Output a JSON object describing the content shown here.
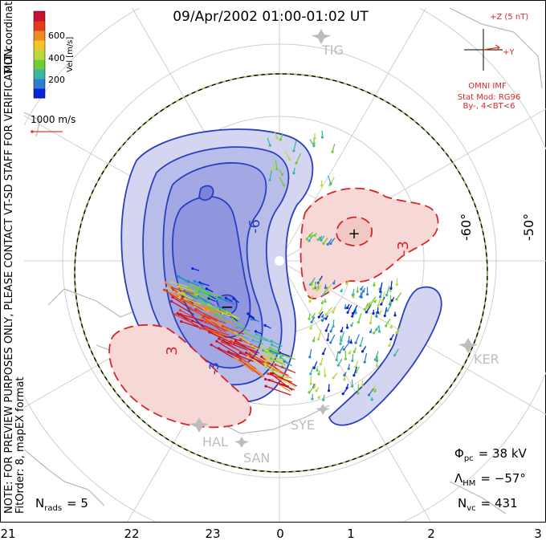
{
  "chart_data": {
    "type": "polar_convection_map",
    "title": "09/Apr/2002 01:00-01:02 UT",
    "coordinates": "MLT coordinates",
    "side_note": "NOTE: FOR PREVIEW PURPOSES ONLY, PLEASE CONTACT VT-SD STAFF FOR VERIFICATION.",
    "fit_note": "FitOrder: 8, mapEX format",
    "colorbar": {
      "label": "Vel [m/s]",
      "ticks": [
        "200",
        "400",
        "600"
      ],
      "colors": [
        "#0b22d6",
        "#2f7fd0",
        "#3cb6a2",
        "#6fcb3a",
        "#b9d93c",
        "#f2c52a",
        "#f08a22",
        "#e33b1c",
        "#c8102e"
      ]
    },
    "reference_vector": "1000 m/s",
    "imf": {
      "z_label": "+Z (5 nT)",
      "y_label": "+Y",
      "source": "OMNI IMF",
      "model": "Stat Mod: RG96",
      "condition": "By-, 4<BT<6"
    },
    "mlt_ticks": [
      "21",
      "22",
      "23",
      "0",
      "1",
      "2",
      "3"
    ],
    "lat_ticks": [
      "-60°",
      "-50°"
    ],
    "stations": [
      "TIG",
      "KER",
      "SYE",
      "HAL",
      "SAN"
    ],
    "contour_labels": [
      "-6",
      "-3",
      "3",
      "-3"
    ],
    "potential_markers": {
      "minimum": "−",
      "maximum": "+"
    },
    "stats": {
      "phi_pc_label": "Φ",
      "phi_pc_sub": "pc",
      "phi_pc_value": "= 38 kV",
      "lambda_hm_label": "Λ",
      "lambda_hm_sub": "HM",
      "lambda_hm_value": "= −57°",
      "n_vc_label": "N",
      "n_vc_sub": "vc",
      "n_vc_value": "= 431",
      "n_rads_label": "N",
      "n_rads_sub": "rads",
      "n_rads_value": "= 5"
    },
    "colors": {
      "negative_cell": "#2a3fbf",
      "positive_cell": "#d62728",
      "negative_fill": "#c9ccef",
      "positive_fill": "#f6d8d6",
      "boundary": "#8ecb46"
    }
  }
}
